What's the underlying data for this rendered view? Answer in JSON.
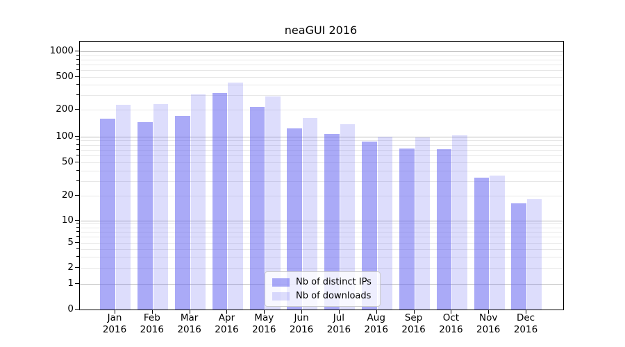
{
  "title": "neaGUI 2016",
  "legend": {
    "items": [
      {
        "label": "Nb of distinct IPs"
      },
      {
        "label": "Nb of downloads"
      }
    ]
  },
  "chart_data": {
    "type": "bar",
    "title": "neaGUI 2016",
    "xlabel": "",
    "ylabel": "",
    "yscale": "symlog",
    "ylim": [
      0,
      1200
    ],
    "grid": true,
    "legend_position": "lower center",
    "categories": [
      "Jan 2016",
      "Feb 2016",
      "Mar 2016",
      "Apr 2016",
      "May 2016",
      "Jun 2016",
      "Jul 2016",
      "Aug 2016",
      "Sep 2016",
      "Oct 2016",
      "Nov 2016",
      "Dec 2016"
    ],
    "x_labels": [
      [
        "Jan",
        "2016"
      ],
      [
        "Feb",
        "2016"
      ],
      [
        "Mar",
        "2016"
      ],
      [
        "Apr",
        "2016"
      ],
      [
        "May",
        "2016"
      ],
      [
        "Jun",
        "2016"
      ],
      [
        "Jul",
        "2016"
      ],
      [
        "Aug",
        "2016"
      ],
      [
        "Sep",
        "2016"
      ],
      [
        "Oct",
        "2016"
      ],
      [
        "Nov",
        "2016"
      ],
      [
        "Dec",
        "2016"
      ]
    ],
    "y_ticks": [
      "0",
      "1",
      "2",
      "5",
      "10",
      "20",
      "50",
      "100",
      "200",
      "500",
      "1000"
    ],
    "series": [
      {
        "name": "Nb of distinct IPs",
        "color": "rgba(100,100,240,0.55)",
        "values": [
          157,
          145,
          170,
          318,
          218,
          124,
          107,
          87,
          72,
          71,
          33,
          16
        ]
      },
      {
        "name": "Nb of downloads",
        "color": "rgba(100,100,240,0.22)",
        "values": [
          230,
          235,
          305,
          430,
          290,
          162,
          138,
          100,
          97,
          103,
          35,
          18
        ]
      }
    ],
    "colors": {
      "major_grid": "#b9b9b9",
      "minor_grid": "#e7e7e7",
      "frame": "#000000"
    }
  }
}
